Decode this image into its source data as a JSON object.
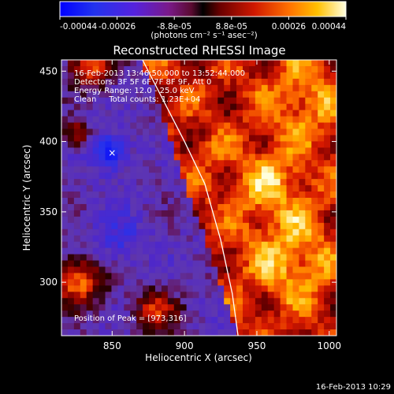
{
  "chart_data": {
    "type": "heatmap",
    "title": "Reconstructed RHESSI Image",
    "xlabel": "Heliocentric X (arcsec)",
    "ylabel": "Heliocentric Y (arcsec)",
    "xlim": [
      815,
      1005
    ],
    "ylim": [
      262,
      458
    ],
    "xticks": [
      850,
      900,
      950,
      1000
    ],
    "yticks": [
      300,
      350,
      400,
      450
    ],
    "colorbar": {
      "ticks": [
        "-0.00044",
        "-0.00026",
        "-8.8e-05",
        "8.8e-05",
        "0.00026",
        "0.00044"
      ],
      "label": "(photons cm⁻² s⁻¹ asec⁻²)"
    },
    "annotations": [
      "16-Feb-2013 13:46:50.000 to 13:52:44.000",
      "Detectors: 3F 5F 6F 7F 8F 9F, Att 0",
      "Energy Range: 12.0 - 25.0 keV",
      "Clean     Total counts: 1.23E+04"
    ],
    "peak_label": "Position of Peak = [973,316]",
    "peak_position": [
      973,
      316
    ],
    "timestamp": "16-Feb-2013 10:29",
    "limb_points": [
      [
        871,
        458
      ],
      [
        885,
        430
      ],
      [
        900,
        400
      ],
      [
        914,
        370
      ],
      [
        925,
        330
      ],
      [
        933,
        292
      ],
      [
        937,
        262
      ]
    ],
    "min_marker": [
      850,
      392
    ]
  }
}
